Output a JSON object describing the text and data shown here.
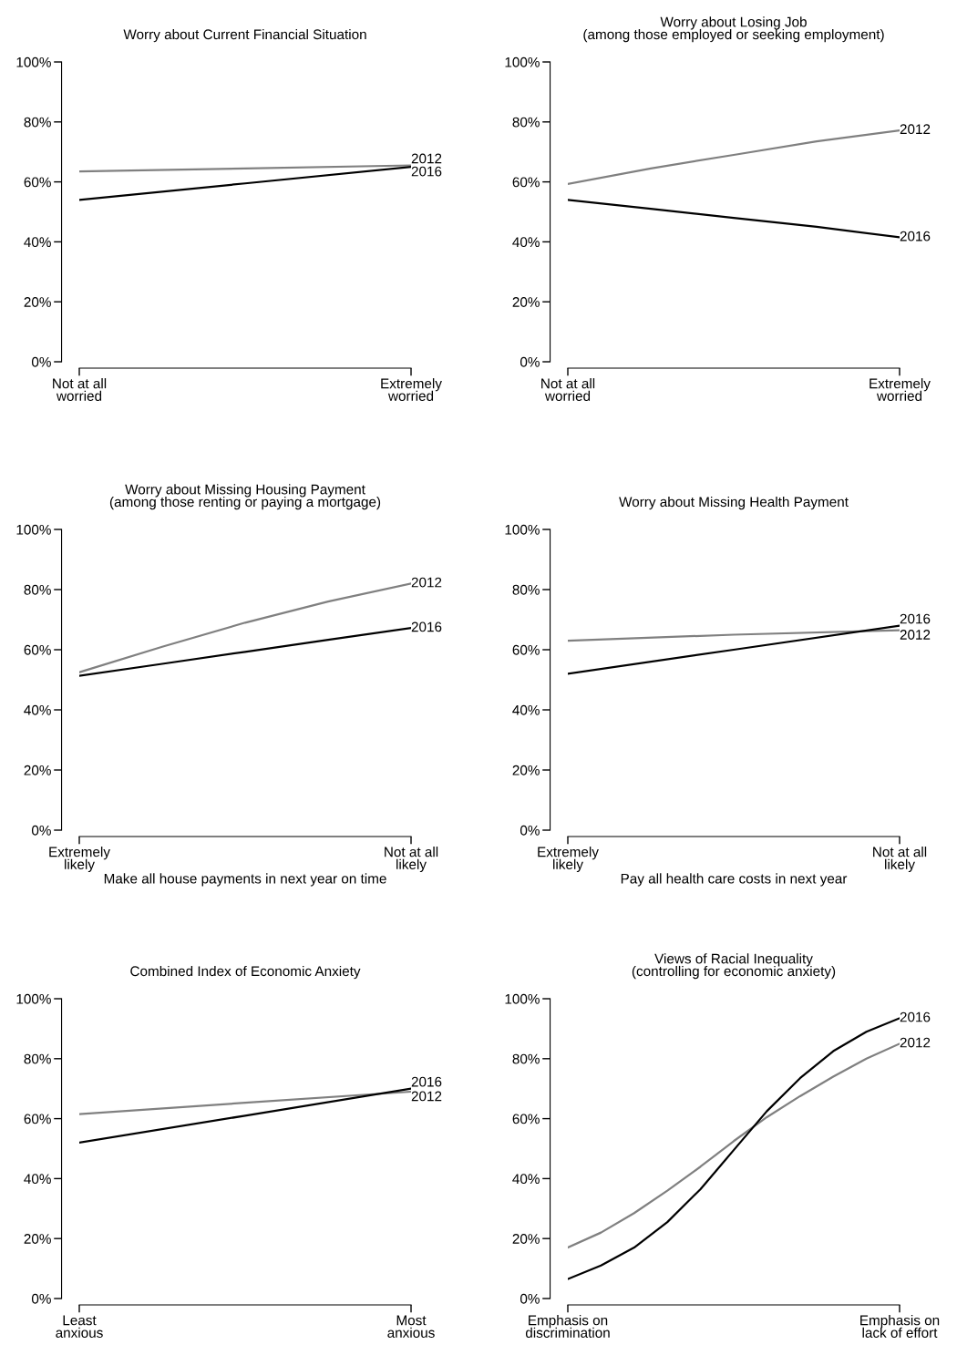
{
  "chart_data": [
    {
      "type": "line",
      "title": "Worry about Current Financial Situation",
      "categories": [
        "Not at all\nworried",
        null,
        "Extremely\nworried"
      ],
      "ylim": [
        0,
        100
      ],
      "yticks": [
        {
          "value": 0,
          "label": "0%"
        },
        {
          "value": 20,
          "label": "20%"
        },
        {
          "value": 40,
          "label": "40%"
        },
        {
          "value": 60,
          "label": "60%"
        },
        {
          "value": 80,
          "label": "80%"
        },
        {
          "value": 100,
          "label": "100%"
        }
      ],
      "series": [
        {
          "name": "2012",
          "color": "#808080",
          "values": [
            63.5,
            64.5,
            65.5
          ]
        },
        {
          "name": "2016",
          "color": "#000000",
          "values": [
            54,
            59.5,
            65
          ]
        }
      ]
    },
    {
      "type": "line",
      "title": "Worry about Losing Job\n(among those employed or seeking employment)",
      "categories": [
        "Not at all\nworried",
        null,
        null,
        null,
        "Extremely\nworried"
      ],
      "ylim": [
        0,
        100
      ],
      "yticks": [
        {
          "value": 0,
          "label": "0%"
        },
        {
          "value": 20,
          "label": "20%"
        },
        {
          "value": 40,
          "label": "40%"
        },
        {
          "value": 60,
          "label": "60%"
        },
        {
          "value": 80,
          "label": "80%"
        },
        {
          "value": 100,
          "label": "100%"
        }
      ],
      "series": [
        {
          "name": "2012",
          "color": "#808080",
          "values": [
            59.3,
            64.5,
            69,
            73.5,
            77.2
          ]
        },
        {
          "name": "2016",
          "color": "#000000",
          "values": [
            54,
            51,
            48,
            45,
            41.5
          ]
        }
      ]
    },
    {
      "type": "line",
      "title": "Worry about Missing Housing Payment\n(among those renting or paying a mortgage)",
      "xlabel": "Make all house payments in next year on time",
      "categories": [
        "Extremely\nlikely",
        null,
        null,
        null,
        "Not at all\nlikely"
      ],
      "ylim": [
        0,
        100
      ],
      "yticks": [
        {
          "value": 0,
          "label": "0%"
        },
        {
          "value": 20,
          "label": "20%"
        },
        {
          "value": 40,
          "label": "40%"
        },
        {
          "value": 60,
          "label": "60%"
        },
        {
          "value": 80,
          "label": "80%"
        },
        {
          "value": 100,
          "label": "100%"
        }
      ],
      "series": [
        {
          "name": "2012",
          "color": "#808080",
          "values": [
            52.5,
            61,
            69,
            76,
            82
          ]
        },
        {
          "name": "2016",
          "color": "#000000",
          "values": [
            51.3,
            55.3,
            59.3,
            63.3,
            67.2
          ]
        }
      ]
    },
    {
      "type": "line",
      "title": "Worry about Missing Health Payment",
      "xlabel": "Pay all health care costs in next year",
      "categories": [
        "Extremely\nlikely",
        null,
        "Not at all\nlikely"
      ],
      "ylim": [
        0,
        100
      ],
      "yticks": [
        {
          "value": 0,
          "label": "0%"
        },
        {
          "value": 20,
          "label": "20%"
        },
        {
          "value": 40,
          "label": "40%"
        },
        {
          "value": 60,
          "label": "60%"
        },
        {
          "value": 80,
          "label": "80%"
        },
        {
          "value": 100,
          "label": "100%"
        }
      ],
      "series": [
        {
          "name": "2012",
          "color": "#808080",
          "values": [
            63,
            65,
            66.5
          ]
        },
        {
          "name": "2016",
          "color": "#000000",
          "values": [
            52,
            60,
            68
          ]
        }
      ]
    },
    {
      "type": "line",
      "title": "Combined Index of Economic Anxiety",
      "categories": [
        "Least\nanxious",
        null,
        "Most\nanxious"
      ],
      "ylim": [
        0,
        100
      ],
      "yticks": [
        {
          "value": 0,
          "label": "0%"
        },
        {
          "value": 20,
          "label": "20%"
        },
        {
          "value": 40,
          "label": "40%"
        },
        {
          "value": 60,
          "label": "60%"
        },
        {
          "value": 80,
          "label": "80%"
        },
        {
          "value": 100,
          "label": "100%"
        }
      ],
      "series": [
        {
          "name": "2012",
          "color": "#808080",
          "values": [
            61.5,
            65.3,
            69
          ]
        },
        {
          "name": "2016",
          "color": "#000000",
          "values": [
            52,
            61,
            70
          ]
        }
      ]
    },
    {
      "type": "line",
      "title": "Views of Racial Inequality\n(controlling for economic anxiety)",
      "categories": [
        "Emphasis on\ndiscrimination",
        null,
        null,
        null,
        null,
        null,
        null,
        null,
        null,
        null,
        "Emphasis on\nlack of effort"
      ],
      "ylim": [
        0,
        100
      ],
      "yticks": [
        {
          "value": 0,
          "label": "0%"
        },
        {
          "value": 20,
          "label": "20%"
        },
        {
          "value": 40,
          "label": "40%"
        },
        {
          "value": 60,
          "label": "60%"
        },
        {
          "value": 80,
          "label": "80%"
        },
        {
          "value": 100,
          "label": "100%"
        }
      ],
      "series": [
        {
          "name": "2012",
          "color": "#808080",
          "values": [
            17,
            22,
            28.5,
            36,
            44,
            52.5,
            60.5,
            67.5,
            74,
            80,
            85
          ]
        },
        {
          "name": "2016",
          "color": "#000000",
          "values": [
            6.5,
            11,
            17,
            25.5,
            36.5,
            49.5,
            62.5,
            73.5,
            82.5,
            89,
            93.5
          ]
        }
      ]
    }
  ]
}
